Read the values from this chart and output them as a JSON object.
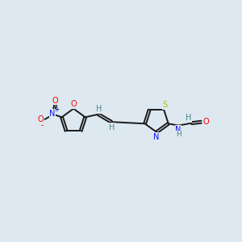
{
  "background_color": "#dde8f0",
  "bond_color": "#1a1a1a",
  "atom_colors": {
    "O": "#ff0000",
    "N": "#1010ee",
    "S": "#b8b800",
    "H": "#4a8888",
    "C": "#1a1a1a"
  },
  "figsize": [
    3.0,
    3.0
  ],
  "dpi": 100,
  "xlim": [
    0,
    10
  ],
  "ylim": [
    3.5,
    6.5
  ]
}
